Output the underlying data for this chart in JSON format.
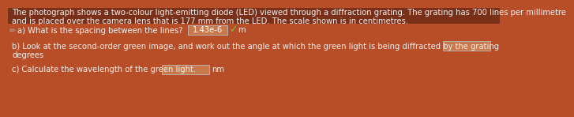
{
  "background_color": "#b84e28",
  "text_color": "#f0f0f0",
  "line1": "The photograph shows a two-colour light-emitting diode (LED) viewed through a diffraction grating. The grating has 700 lines per millimetre",
  "line2": "and is placed over the camera lens that is 177 mm from the LED. The scale shown is in centimetres.",
  "part_a_label": "a) What is the spacing between the lines?",
  "part_a_answer": "1.43e-6",
  "part_a_unit": "m",
  "part_b_line1": "b) Look at the second-order green image, and work out the angle at which the green light is being diffracted by the grating",
  "part_b_line2": "degrees",
  "part_c_label": "c) Calculate the wavelength of the green light.",
  "part_c_unit": "nm",
  "tick_color": "#66cc44",
  "answer_box_fill": "#c8784a",
  "answer_box_edge": "#bbbbbb",
  "empty_box_fill": "#c8784a",
  "empty_box_edge": "#bbbbbb",
  "pencil_color": "#aaaaaa",
  "font_size": 7.2,
  "top_fade_color": "#7a3018"
}
